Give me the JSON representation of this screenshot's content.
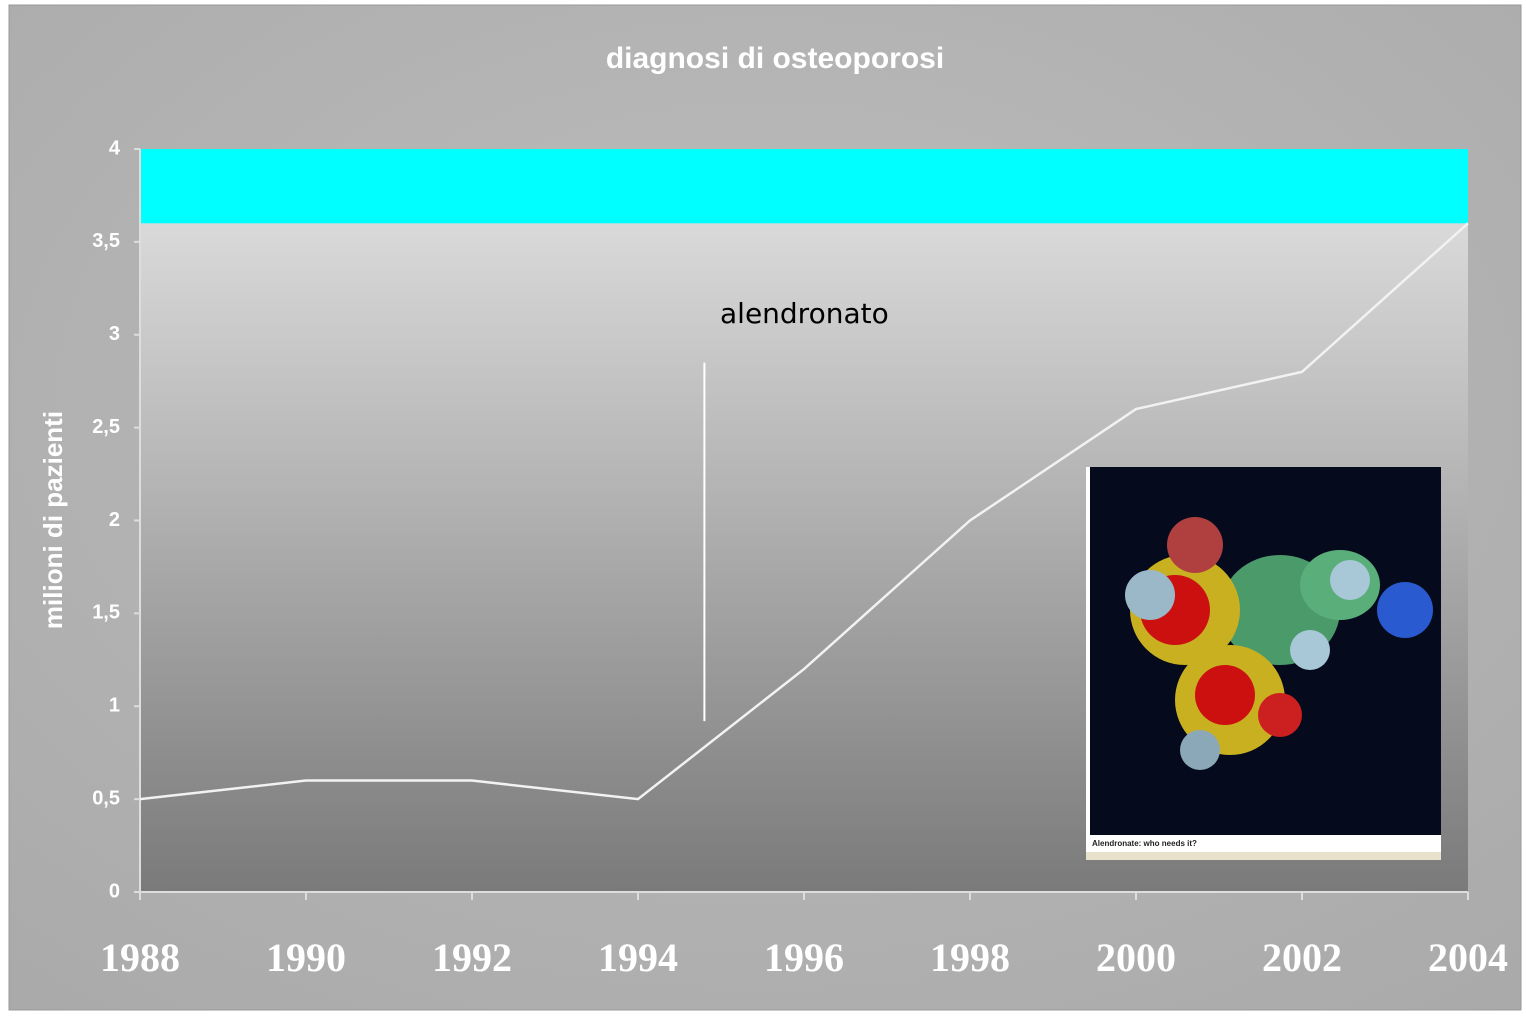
{
  "chart_data": {
    "type": "line",
    "title": "diagnosi di osteoporosi",
    "y_label": "milioni di pazienti",
    "x": [
      1988,
      1990,
      1992,
      1994,
      1996,
      1998,
      2000,
      2002,
      2004
    ],
    "series": [
      {
        "name": "diagnosi",
        "color": "#f2f2f2",
        "values": [
          0.5,
          0.6,
          0.6,
          0.5,
          1.2,
          2.0,
          2.6,
          2.8,
          3.6
        ]
      }
    ],
    "xlim": [
      1988,
      2004
    ],
    "xticks": [
      1988,
      1990,
      1992,
      1994,
      1996,
      1998,
      2000,
      2002,
      2004
    ],
    "ylim": [
      0,
      4
    ],
    "yticks": [
      0,
      {
        "value": 0.5,
        "label": "0,5"
      },
      1,
      {
        "value": 1.5,
        "label": "1,5"
      },
      2,
      {
        "value": 2.5,
        "label": "2,5"
      },
      3,
      {
        "value": 3.5,
        "label": "3,5"
      },
      4
    ],
    "band": [
      3.6,
      4
    ],
    "band_color": "#00ffff",
    "annotation": {
      "text": "alendronato",
      "x": 1994.8,
      "y_range": [
        0.92,
        2.85
      ]
    },
    "inset_caption": "Alendronate: who needs it?"
  }
}
